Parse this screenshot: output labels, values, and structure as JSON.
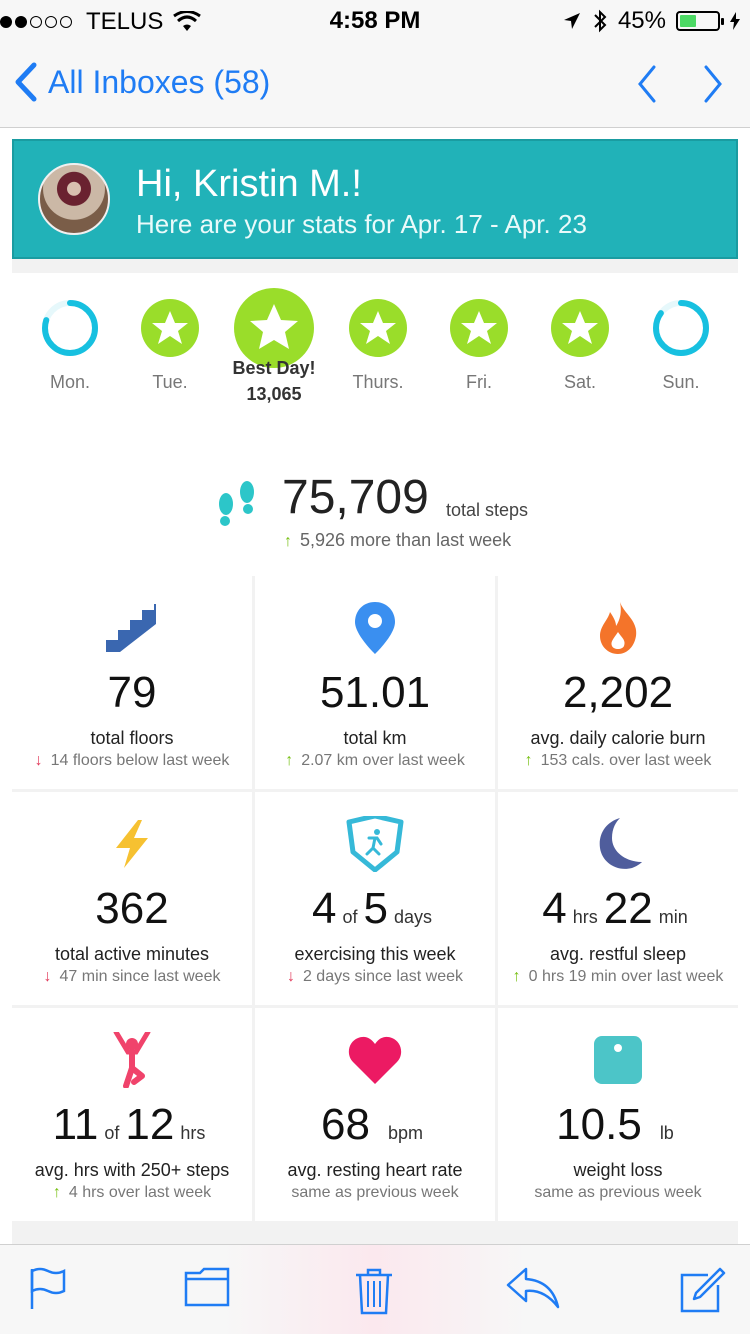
{
  "status": {
    "carrier": "TELUS",
    "time": "4:58 PM",
    "battery_percent": "45%",
    "battery_level": 0.45
  },
  "nav": {
    "back_label": "All Inboxes (58)"
  },
  "banner": {
    "greeting": "Hi, Kristin M.!",
    "subtitle": "Here are your stats for Apr. 17 - Apr. 23"
  },
  "days": [
    {
      "label": "Mon.",
      "status": "partial",
      "progress": 0.8
    },
    {
      "label": "Tue.",
      "status": "goal"
    },
    {
      "label": "Best Day!",
      "status": "best",
      "steps": "13,065"
    },
    {
      "label": "Thurs.",
      "status": "goal"
    },
    {
      "label": "Fri.",
      "status": "goal"
    },
    {
      "label": "Sat.",
      "status": "goal"
    },
    {
      "label": "Sun.",
      "status": "partial",
      "progress": 0.85
    }
  ],
  "total_steps": {
    "value": "75,709",
    "label": "total steps",
    "delta": "5,926 more than last week"
  },
  "stats": [
    {
      "icon": "stairs-icon",
      "value": "79",
      "label": "total floors",
      "delta": "14 floors below last week",
      "trend": "down"
    },
    {
      "icon": "location-pin-icon",
      "value": "51.01",
      "label": "total km",
      "delta": "2.07 km over last week",
      "trend": "up"
    },
    {
      "icon": "flame-icon",
      "value": "2,202",
      "label": "avg. daily calorie burn",
      "delta": "153 cals. over last week",
      "trend": "up"
    },
    {
      "icon": "lightning-icon",
      "value": "362",
      "label": "total active minutes",
      "delta": "47 min since last week",
      "trend": "down"
    },
    {
      "icon": "runner-badge-icon",
      "value_a": "4",
      "unit_a": "of",
      "value_b": "5",
      "unit_b": "days",
      "label": "exercising this week",
      "delta": "2 days since last week",
      "trend": "down"
    },
    {
      "icon": "moon-icon",
      "value_a": "4",
      "unit_a": "hrs",
      "value_b": "22",
      "unit_b": "min",
      "label": "avg. restful sleep",
      "delta": "0 hrs 19 min over last week",
      "trend": "up"
    },
    {
      "icon": "person-stretch-icon",
      "value_a": "11",
      "unit_a": "of",
      "value_b": "12",
      "unit_b": "hrs",
      "label": "avg. hrs with 250+ steps",
      "delta": "4 hrs over last week",
      "trend": "up"
    },
    {
      "icon": "heart-icon",
      "value_a": "68",
      "unit_a": "",
      "value_b": "",
      "unit_b": "bpm",
      "label": "avg. resting heart rate",
      "delta": "same as previous week",
      "trend": "none"
    },
    {
      "icon": "scale-icon",
      "value_a": "10.5",
      "unit_a": "",
      "value_b": "",
      "unit_b": "lb",
      "label": "weight loss",
      "delta": "same as previous week",
      "trend": "none"
    }
  ],
  "colors": {
    "accent": "#1f7cf4",
    "banner": "#21b2b8",
    "goal_green": "#9add2a",
    "ring_blue": "#17c0e0"
  },
  "toolbar": [
    "flag-icon",
    "folder-icon",
    "trash-icon",
    "reply-icon",
    "compose-icon"
  ]
}
